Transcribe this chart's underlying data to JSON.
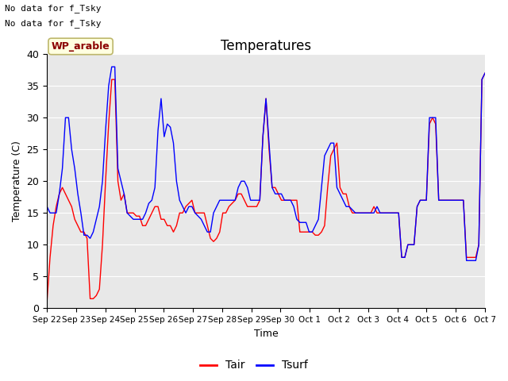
{
  "title": "Temperatures",
  "xlabel": "Time",
  "ylabel": "Temperature (C)",
  "note_lines": [
    "No data for f_Tsky",
    "No data for f_Tsky"
  ],
  "location_label": "WP_arable",
  "legend_entries": [
    "Tair",
    "Tsurf"
  ],
  "ylim": [
    0,
    40
  ],
  "yticks": [
    0,
    5,
    10,
    15,
    20,
    25,
    30,
    35,
    40
  ],
  "xtick_labels": [
    "Sep 22",
    "Sep 23",
    "Sep 24",
    "Sep 25",
    "Sep 26",
    "Sep 27",
    "Sep 28",
    "Sep 29",
    "Sep 30",
    "Oct 1",
    "Oct 2",
    "Oct 3",
    "Oct 4",
    "Oct 5",
    "Oct 6",
    "Oct 7"
  ],
  "background_color": "#e8e8e8",
  "tair": [
    1,
    8,
    13,
    16,
    18,
    19,
    18,
    17,
    16,
    14,
    13,
    12,
    12,
    11,
    1.5,
    1.5,
    2,
    3,
    10,
    20,
    29,
    36,
    36,
    20,
    17,
    18,
    15,
    15,
    15,
    14.5,
    14.5,
    13,
    13,
    14,
    15,
    16,
    16,
    14,
    14,
    13,
    13,
    12,
    13,
    15,
    15,
    16,
    16.5,
    17,
    15,
    15,
    15,
    15,
    13,
    11,
    10.5,
    11,
    12,
    15,
    15,
    16,
    16.5,
    17,
    18,
    18,
    17,
    16,
    16,
    16,
    16,
    17,
    27,
    33,
    25,
    19,
    19,
    18,
    17,
    17,
    17,
    17,
    17,
    17,
    12,
    12,
    12,
    12,
    12,
    11.5,
    11.5,
    12,
    13,
    19,
    24,
    25,
    26,
    19,
    18,
    18,
    16,
    15,
    15,
    15,
    15,
    15,
    15,
    15,
    16,
    15,
    15,
    15,
    15,
    15,
    15,
    15,
    15,
    8,
    8,
    10,
    10,
    10,
    16,
    17,
    17,
    17,
    29,
    30,
    29,
    17,
    17,
    17,
    17,
    17,
    17,
    17,
    17,
    17,
    8,
    8,
    8,
    8,
    10,
    36,
    37
  ],
  "tsurf": [
    16,
    15,
    15,
    15,
    18,
    22,
    30,
    30,
    25,
    22,
    18,
    15,
    11.5,
    11.5,
    11,
    12,
    14,
    16,
    20,
    28,
    35,
    38,
    38,
    22,
    20,
    18,
    15,
    14.5,
    14,
    14,
    14,
    14,
    15,
    16.5,
    17,
    19,
    28,
    33,
    27,
    29,
    28.5,
    26,
    20,
    17,
    16,
    15,
    16,
    16,
    15,
    14.5,
    14,
    13,
    12,
    12,
    15,
    16,
    17,
    17,
    17,
    17,
    17,
    17,
    19,
    20,
    20,
    19,
    17,
    17,
    17,
    17,
    27,
    33,
    26,
    19,
    18,
    18,
    18,
    17,
    17,
    17,
    16,
    14,
    13.5,
    13.5,
    13.5,
    12,
    12,
    13,
    14,
    19,
    24,
    25,
    26,
    26,
    19,
    18,
    17,
    16,
    16,
    15.5,
    15,
    15,
    15,
    15,
    15,
    15,
    15,
    16,
    15,
    15,
    15,
    15,
    15,
    15,
    15,
    8,
    8,
    10,
    10,
    10,
    16,
    17,
    17,
    17,
    30,
    30,
    30,
    17,
    17,
    17,
    17,
    17,
    17,
    17,
    17,
    17,
    7.5,
    7.5,
    7.5,
    7.5,
    10,
    36,
    37
  ]
}
